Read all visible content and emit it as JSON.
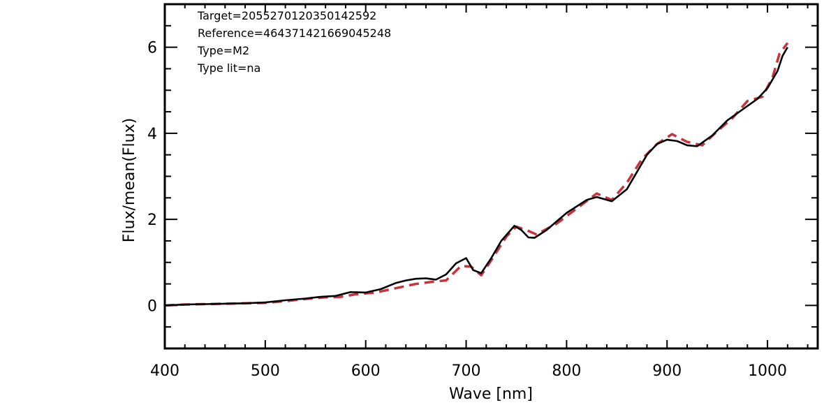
{
  "chart_data": {
    "type": "line",
    "xlabel": "Wave [nm]",
    "ylabel": "Flux/mean(Flux)",
    "xlim": [
      400,
      1050
    ],
    "ylim": [
      -1,
      7
    ],
    "x_ticks": [
      400,
      500,
      600,
      700,
      800,
      900,
      1000
    ],
    "y_ticks": [
      0,
      2,
      4,
      6
    ],
    "annotations": [
      "Target=205527012035014259​2",
      "Reference=464371421669045248",
      "Type=M2",
      "Type lit=na"
    ],
    "series": [
      {
        "style": "solid",
        "color": "#000000",
        "x": [
          400,
          420,
          440,
          460,
          480,
          500,
          520,
          540,
          555,
          570,
          585,
          600,
          615,
          630,
          640,
          650,
          660,
          670,
          680,
          690,
          700,
          707,
          715,
          725,
          735,
          748,
          755,
          762,
          768,
          780,
          800,
          820,
          830,
          845,
          860,
          870,
          880,
          890,
          900,
          910,
          920,
          930,
          945,
          960,
          975,
          990,
          1000,
          1010,
          1015,
          1020
        ],
        "y": [
          0.0,
          0.02,
          0.03,
          0.04,
          0.05,
          0.07,
          0.12,
          0.16,
          0.2,
          0.22,
          0.31,
          0.3,
          0.38,
          0.52,
          0.58,
          0.62,
          0.63,
          0.6,
          0.72,
          0.98,
          1.1,
          0.82,
          0.75,
          1.1,
          1.5,
          1.85,
          1.75,
          1.58,
          1.57,
          1.75,
          2.15,
          2.45,
          2.52,
          2.42,
          2.7,
          3.1,
          3.5,
          3.75,
          3.85,
          3.82,
          3.72,
          3.7,
          3.95,
          4.3,
          4.55,
          4.8,
          5.05,
          5.45,
          5.8,
          6.0
        ]
      },
      {
        "style": "dashed",
        "color": "#c8323c",
        "x": [
          400,
          420,
          440,
          460,
          480,
          500,
          520,
          540,
          560,
          575,
          590,
          610,
          630,
          650,
          670,
          680,
          695,
          705,
          715,
          725,
          740,
          750,
          760,
          770,
          790,
          810,
          830,
          845,
          860,
          875,
          890,
          905,
          920,
          935,
          950,
          965,
          980,
          995,
          1005,
          1012,
          1020
        ],
        "y": [
          0.0,
          0.02,
          0.03,
          0.04,
          0.05,
          0.06,
          0.1,
          0.15,
          0.19,
          0.2,
          0.26,
          0.3,
          0.4,
          0.5,
          0.56,
          0.58,
          0.92,
          0.9,
          0.7,
          1.05,
          1.6,
          1.83,
          1.75,
          1.65,
          1.9,
          2.25,
          2.6,
          2.45,
          2.85,
          3.4,
          3.75,
          3.98,
          3.8,
          3.72,
          4.05,
          4.35,
          4.75,
          4.85,
          5.3,
          5.85,
          6.1
        ]
      }
    ]
  }
}
